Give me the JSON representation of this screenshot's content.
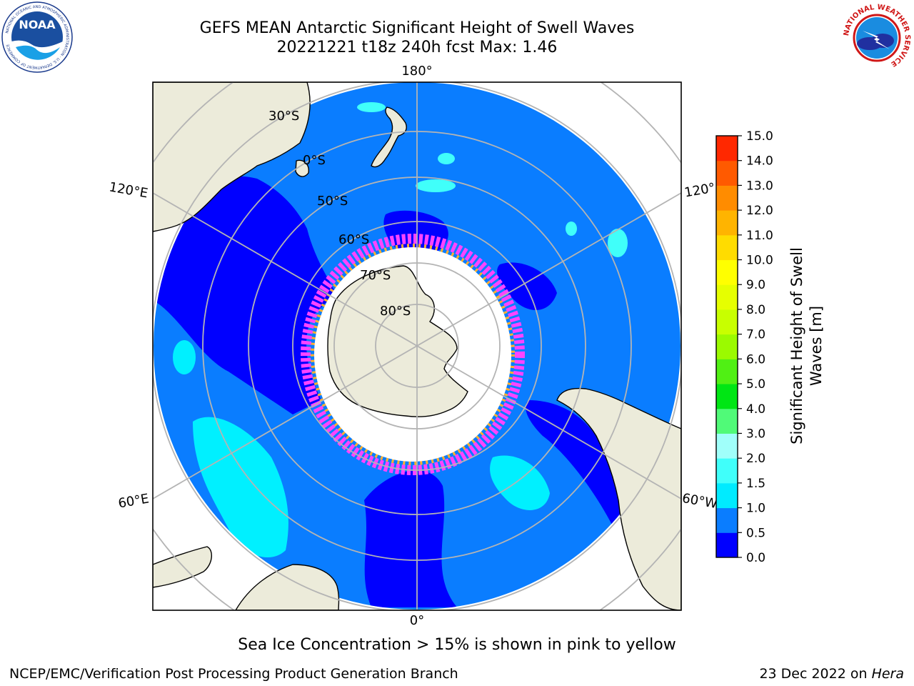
{
  "header": {
    "title_line1": "GEFS MEAN Antarctic Significant Height of Swell Waves",
    "title_line2": "20221221 t18z 240h fcst   Max: 1.46"
  },
  "logos": {
    "noaa_text": "NOAA",
    "noaa_ring_text": "NATIONAL OCEANIC AND ATMOSPHERIC ADMINISTRATION · U.S. DEPARTMENT OF COMMERCE",
    "nws_ring_text": "NATIONAL WEATHER SERVICE"
  },
  "map": {
    "projection": "south polar stereographic",
    "longitude_labels": {
      "top": "180°",
      "bottom": "0°",
      "upper_left": "120°E",
      "upper_right": "120°",
      "lower_left": "60°E",
      "lower_right": "60°W"
    },
    "latitude_labels": [
      "30°S",
      "0°S",
      "50°S",
      "60°S",
      "70°S",
      "80°S"
    ],
    "colors": {
      "land": "#ecebda",
      "ocean_low": "#0a7dff",
      "ocean_very_low": "#0000ff",
      "ocean_mid": "#00f0ff",
      "sea_ice": "#ffffff",
      "ice_edge_pink": "#ff44ff",
      "ice_edge_orange": "#ffb030",
      "gridline": "#b4b4b4"
    }
  },
  "colorbar": {
    "title_line1": "Significant Height of Swell",
    "title_line2": "Waves [m]",
    "ticks": [
      "0.0",
      "0.5",
      "1.0",
      "1.5",
      "2.0",
      "3.0",
      "4.0",
      "5.0",
      "6.0",
      "7.0",
      "8.0",
      "9.0",
      "10.0",
      "11.0",
      "12.0",
      "13.0",
      "14.0",
      "15.0"
    ],
    "colors": [
      "#0000ff",
      "#0a7dff",
      "#00ebff",
      "#40fffa",
      "#a0fffa",
      "#50fa78",
      "#00e614",
      "#50f014",
      "#9bfa00",
      "#c8ff00",
      "#e6ff00",
      "#ffff00",
      "#ffdc00",
      "#ffb400",
      "#ff8c00",
      "#ff5a00",
      "#ff2800"
    ]
  },
  "footer": {
    "note": "Sea Ice Concentration > 15% is shown in pink to yellow",
    "branch": "NCEP/EMC/Verification Post Processing Product Generation Branch",
    "date_prefix": "23 Dec 2022 on ",
    "date_host": "Hera"
  }
}
